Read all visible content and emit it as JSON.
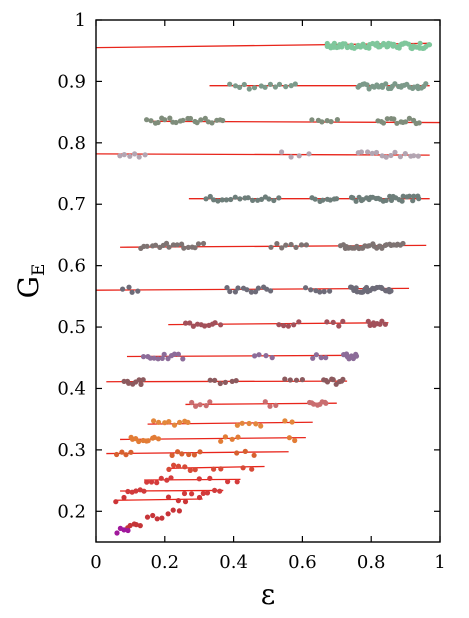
{
  "chart_data": {
    "type": "scatter",
    "xlabel": "ε",
    "ylabel": "G",
    "ylabel_subscript": "E",
    "xlim": [
      0,
      1
    ],
    "ylim": [
      0.15,
      1.0
    ],
    "xticks": [
      "0",
      "0.2",
      "0.4",
      "0.6",
      "0.8",
      "1"
    ],
    "xtick_values": [
      0,
      0.2,
      0.4,
      0.6,
      0.8,
      1.0
    ],
    "yticks": [
      "0.2",
      "0.3",
      "0.4",
      "0.5",
      "0.6",
      "0.7",
      "0.8",
      "0.9",
      "1"
    ],
    "ytick_values": [
      0.2,
      0.3,
      0.4,
      0.5,
      0.6,
      0.7,
      0.8,
      0.9,
      1.0
    ],
    "grid": false,
    "fit_line_color": "#e8251b",
    "series": [
      {
        "color": "#7fc79c",
        "y": 0.958,
        "line": [
          0.0,
          0.955,
          0.97,
          0.962
        ],
        "clusters": [
          [
            0.67,
            0.97,
            60
          ]
        ]
      },
      {
        "color": "#7c9a8a",
        "y": 0.892,
        "line": [
          0.33,
          0.893,
          0.97,
          0.893
        ],
        "clusters": [
          [
            0.39,
            0.58,
            14
          ],
          [
            0.76,
            0.96,
            30
          ]
        ]
      },
      {
        "color": "#7f8d7b",
        "y": 0.836,
        "line": [
          0.16,
          0.835,
          1.0,
          0.833
        ],
        "clusters": [
          [
            0.15,
            0.37,
            22
          ],
          [
            0.63,
            0.7,
            6
          ],
          [
            0.82,
            0.94,
            14
          ]
        ]
      },
      {
        "color": "#b3a5b2",
        "y": 0.781,
        "line": [
          0.0,
          0.782,
          0.97,
          0.78
        ],
        "clusters": [
          [
            0.07,
            0.14,
            6
          ],
          [
            0.54,
            0.62,
            4
          ],
          [
            0.76,
            0.94,
            14
          ]
        ]
      },
      {
        "color": "#6d7e7a",
        "y": 0.709,
        "line": [
          0.27,
          0.709,
          0.97,
          0.709
        ],
        "clusters": [
          [
            0.32,
            0.53,
            18
          ],
          [
            0.63,
            0.7,
            8
          ],
          [
            0.74,
            0.94,
            28
          ]
        ]
      },
      {
        "color": "#7e7372",
        "y": 0.632,
        "line": [
          0.07,
          0.63,
          0.96,
          0.633
        ],
        "clusters": [
          [
            0.13,
            0.31,
            18
          ],
          [
            0.51,
            0.61,
            8
          ],
          [
            0.71,
            0.89,
            30
          ]
        ]
      },
      {
        "color": "#6d6b78",
        "y": 0.561,
        "line": [
          0.0,
          0.56,
          0.91,
          0.563
        ],
        "clusters": [
          [
            0.08,
            0.12,
            4
          ],
          [
            0.38,
            0.51,
            12
          ],
          [
            0.61,
            0.68,
            6
          ],
          [
            0.74,
            0.86,
            24
          ]
        ]
      },
      {
        "color": "#a2505a",
        "y": 0.505,
        "line": [
          0.21,
          0.504,
          0.85,
          0.507
        ],
        "clusters": [
          [
            0.26,
            0.36,
            10
          ],
          [
            0.53,
            0.59,
            5
          ],
          [
            0.67,
            0.72,
            4
          ],
          [
            0.79,
            0.84,
            8
          ]
        ]
      },
      {
        "color": "#8c6c99",
        "y": 0.452,
        "line": [
          0.09,
          0.452,
          0.76,
          0.454
        ],
        "clusters": [
          [
            0.14,
            0.25,
            12
          ],
          [
            0.46,
            0.51,
            4
          ],
          [
            0.63,
            0.67,
            4
          ],
          [
            0.72,
            0.76,
            8
          ]
        ]
      },
      {
        "color": "#8c5a5e",
        "y": 0.411,
        "line": [
          0.03,
          0.411,
          0.73,
          0.412
        ],
        "clusters": [
          [
            0.08,
            0.14,
            8
          ],
          [
            0.33,
            0.41,
            6
          ],
          [
            0.55,
            0.6,
            4
          ],
          [
            0.66,
            0.72,
            9
          ]
        ]
      },
      {
        "color": "#c96e70",
        "y": 0.374,
        "line": [
          0.26,
          0.374,
          0.7,
          0.376
        ],
        "clusters": [
          [
            0.28,
            0.33,
            5
          ],
          [
            0.49,
            0.52,
            3
          ],
          [
            0.62,
            0.67,
            8
          ]
        ]
      },
      {
        "color": "#e3873b",
        "y": 0.343,
        "line": [
          0.15,
          0.342,
          0.63,
          0.345
        ],
        "clusters": [
          [
            0.17,
            0.27,
            8
          ],
          [
            0.41,
            0.48,
            5
          ],
          [
            0.55,
            0.57,
            2
          ]
        ]
      },
      {
        "color": "#e27c35",
        "y": 0.318,
        "line": [
          0.07,
          0.317,
          0.61,
          0.32
        ],
        "clusters": [
          [
            0.1,
            0.18,
            10
          ],
          [
            0.36,
            0.41,
            4
          ],
          [
            0.56,
            0.58,
            2
          ]
        ]
      },
      {
        "color": "#d7602f",
        "y": 0.295,
        "line": [
          0.03,
          0.294,
          0.56,
          0.297
        ],
        "clusters": [
          [
            0.06,
            0.1,
            4
          ],
          [
            0.22,
            0.3,
            6
          ],
          [
            0.41,
            0.46,
            3
          ]
        ]
      },
      {
        "color": "#d74a37",
        "y": 0.271,
        "line": [
          0.21,
          0.27,
          0.49,
          0.273
        ],
        "clusters": [
          [
            0.21,
            0.29,
            6
          ],
          [
            0.34,
            0.36,
            2
          ],
          [
            0.43,
            0.45,
            2
          ]
        ]
      },
      {
        "color": "#d43b3b",
        "y": 0.251,
        "line": [
          0.14,
          0.251,
          0.42,
          0.252
        ],
        "clusters": [
          [
            0.15,
            0.22,
            6
          ],
          [
            0.3,
            0.33,
            2
          ],
          [
            0.38,
            0.41,
            2
          ]
        ]
      },
      {
        "color": "#d13a3b",
        "y": 0.233,
        "line": [
          0.07,
          0.233,
          0.37,
          0.234
        ],
        "clusters": [
          [
            0.09,
            0.14,
            5
          ],
          [
            0.26,
            0.28,
            2
          ],
          [
            0.31,
            0.36,
            4
          ]
        ]
      },
      {
        "color": "#cc3537",
        "y": 0.219,
        "line": [
          0.06,
          0.218,
          0.31,
          0.22
        ],
        "clusters": [
          [
            0.06,
            0.08,
            2
          ],
          [
            0.21,
            0.24,
            2
          ],
          [
            0.26,
            0.3,
            2
          ]
        ]
      },
      {
        "color": "#c83338",
        "y": 0.2,
        "line": null,
        "clusters": [
          [
            0.21,
            0.24,
            3
          ]
        ]
      },
      {
        "color": "#c73539",
        "y": 0.189,
        "line": null,
        "clusters": [
          [
            0.15,
            0.19,
            4
          ]
        ]
      },
      {
        "color": "#c43638",
        "y": 0.176,
        "line": null,
        "clusters": [
          [
            0.09,
            0.13,
            5
          ]
        ]
      },
      {
        "color": "#a0189c",
        "y": 0.168,
        "line": null,
        "clusters": [
          [
            0.06,
            0.09,
            4
          ]
        ]
      }
    ]
  }
}
